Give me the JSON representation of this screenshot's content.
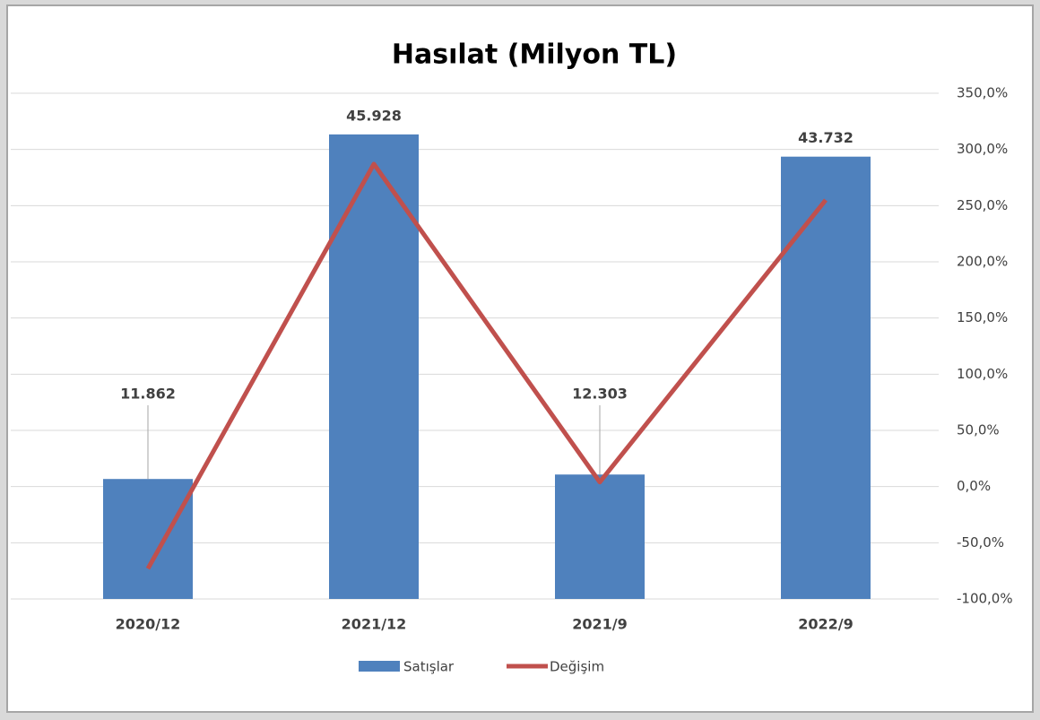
{
  "chart_data": {
    "type": "bar",
    "title": "Hasılat (Milyon TL)",
    "categories": [
      "2020/12",
      "2021/12",
      "2021/9",
      "2022/9"
    ],
    "series": [
      {
        "name": "Satışlar",
        "type": "bar",
        "color": "#4f81bd",
        "values": [
          11862,
          45928,
          12303,
          43732
        ],
        "value_labels": [
          "11.862",
          "45.928",
          "12.303",
          "43.732"
        ]
      },
      {
        "name": "Değişim",
        "type": "line",
        "axis": "y2",
        "color": "#c0504d",
        "values": [
          -73,
          287,
          4,
          255
        ]
      }
    ],
    "ylim": [
      0,
      50000
    ],
    "y2lim": [
      -100,
      350
    ],
    "y2ticks": [
      {
        "value": -100,
        "label": "-100,0%"
      },
      {
        "value": -50,
        "label": "-50,0%"
      },
      {
        "value": 0,
        "label": "0,0%"
      },
      {
        "value": 50,
        "label": "50,0%"
      },
      {
        "value": 100,
        "label": "100,0%"
      },
      {
        "value": 150,
        "label": "150,0%"
      },
      {
        "value": 200,
        "label": "200,0%"
      },
      {
        "value": 250,
        "label": "250,0%"
      },
      {
        "value": 300,
        "label": "300,0%"
      },
      {
        "value": 350,
        "label": "350,0%"
      }
    ],
    "grid": true,
    "legend": "bottom"
  }
}
